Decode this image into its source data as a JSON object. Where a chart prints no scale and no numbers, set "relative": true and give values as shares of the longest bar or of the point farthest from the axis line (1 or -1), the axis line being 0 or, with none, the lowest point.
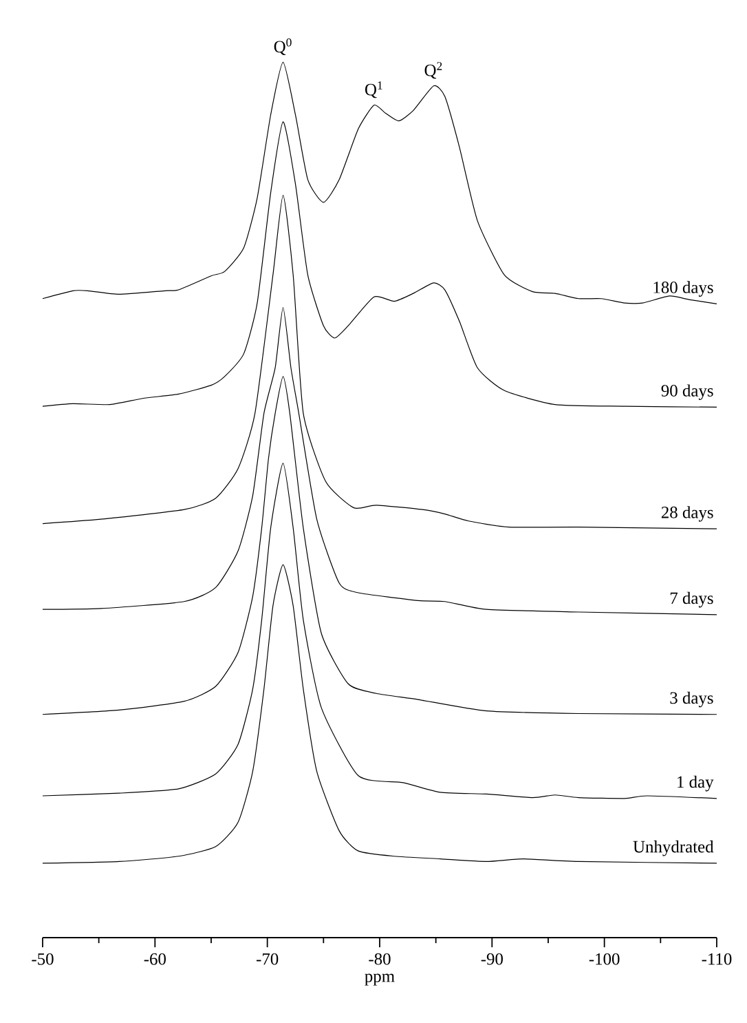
{
  "chart_data": {
    "type": "line",
    "relative": true,
    "xlabel": "ppm",
    "xlim": [
      -50,
      -110
    ],
    "xticks": [
      -50,
      {
        "value": -55,
        "label": null
      },
      -60,
      {
        "value": -65,
        "label": null
      },
      -70,
      {
        "value": -75,
        "label": null
      },
      -80,
      {
        "value": -85,
        "label": null
      },
      -90,
      {
        "value": -95,
        "label": null
      },
      -100,
      {
        "value": -105,
        "label": null
      },
      -110
    ],
    "marker": "none",
    "line_style": "solid",
    "annotations": [
      {
        "text": "Q$^{0}$",
        "x": -71.4,
        "y": 1.0
      },
      {
        "text": "Q$^{1}$",
        "x": -79.5,
        "y": 0.951
      },
      {
        "text": "Q$^{2}$",
        "x": -84.8,
        "y": 0.973
      }
    ],
    "series": [
      {
        "name": "180 days",
        "color": "#000000",
        "x": [
          -50,
          -52.7,
          -54.0,
          -56.8,
          -60.9,
          -62.1,
          -65.0,
          -66.2,
          -67.9,
          -69.1,
          -70.3,
          -71.4,
          -72.5,
          -73.6,
          -75.0,
          -76.4,
          -78.1,
          -79.5,
          -80.5,
          -81.7,
          -83.0,
          -84.8,
          -85.8,
          -87.1,
          -88.7,
          -91.1,
          -93.6,
          -95.6,
          -97.7,
          -99.7,
          -101.8,
          -103.4,
          -105.8,
          -107.5,
          -110
        ],
        "values": [
          0.73,
          0.739,
          0.739,
          0.735,
          0.739,
          0.74,
          0.756,
          0.761,
          0.788,
          0.845,
          0.94,
          1.0,
          0.94,
          0.866,
          0.84,
          0.866,
          0.924,
          0.951,
          0.942,
          0.933,
          0.945,
          0.973,
          0.961,
          0.903,
          0.819,
          0.757,
          0.738,
          0.736,
          0.73,
          0.73,
          0.725,
          0.725,
          0.733,
          0.729,
          0.724
        ]
      },
      {
        "name": "90 days",
        "color": "#000000",
        "x": [
          -50,
          -52.7,
          -56.0,
          -58.9,
          -62.1,
          -65.0,
          -66.2,
          -67.9,
          -69.1,
          -70.3,
          -71.4,
          -72.5,
          -73.6,
          -75.0,
          -76.0,
          -77.2,
          -79.5,
          -81.3,
          -83.0,
          -84.8,
          -85.8,
          -87.1,
          -88.7,
          -91.1,
          -95.6,
          -101.8,
          -110
        ],
        "values": [
          0.607,
          0.61,
          0.609,
          0.616,
          0.621,
          0.631,
          0.641,
          0.667,
          0.725,
          0.851,
          0.932,
          0.861,
          0.757,
          0.699,
          0.685,
          0.699,
          0.732,
          0.727,
          0.736,
          0.748,
          0.74,
          0.704,
          0.651,
          0.625,
          0.609,
          0.607,
          0.606
        ]
      },
      {
        "name": "28 days",
        "color": "#000000",
        "x": [
          -50,
          -55.2,
          -62.6,
          -65.4,
          -67.4,
          -68.9,
          -70.5,
          -71.4,
          -72.3,
          -73.2,
          -75.2,
          -77.7,
          -79.7,
          -83.8,
          -85.8,
          -87.9,
          -91.5,
          -97.7,
          -110
        ],
        "values": [
          0.473,
          0.478,
          0.489,
          0.502,
          0.536,
          0.599,
          0.757,
          0.848,
          0.757,
          0.599,
          0.521,
          0.491,
          0.494,
          0.489,
          0.484,
          0.476,
          0.469,
          0.469,
          0.467
        ]
      },
      {
        "name": "7 days",
        "color": "#000000",
        "x": [
          -50,
          -55.2,
          -62.6,
          -65.4,
          -67.4,
          -68.7,
          -69.7,
          -70.7,
          -71.4,
          -72.1,
          -72.8,
          -74.4,
          -76.4,
          -78.1,
          -83.4,
          -85.8,
          -89.5,
          -97.7,
          -110
        ],
        "values": [
          0.375,
          0.376,
          0.384,
          0.4,
          0.442,
          0.505,
          0.599,
          0.651,
          0.72,
          0.651,
          0.599,
          0.478,
          0.405,
          0.394,
          0.385,
          0.384,
          0.375,
          0.372,
          0.369
        ]
      },
      {
        "name": "3 days",
        "color": "#000000",
        "x": [
          -50,
          -56.8,
          -62.6,
          -65.4,
          -67.4,
          -68.7,
          -69.5,
          -70.1,
          -70.7,
          -71.4,
          -72.0,
          -73.2,
          -74.8,
          -77.2,
          -79.7,
          -83.4,
          -89.5,
          -97.7,
          -110
        ],
        "values": [
          0.255,
          0.26,
          0.27,
          0.287,
          0.326,
          0.39,
          0.468,
          0.547,
          0.599,
          0.641,
          0.599,
          0.468,
          0.348,
          0.29,
          0.279,
          0.272,
          0.259,
          0.256,
          0.255
        ]
      },
      {
        "name": "1 day",
        "color": "#000000",
        "x": [
          -50,
          -56.8,
          -62.1,
          -65.4,
          -67.4,
          -68.7,
          -69.5,
          -70.3,
          -71.4,
          -72.3,
          -73.2,
          -74.8,
          -78.1,
          -82.1,
          -85.4,
          -89.5,
          -93.6,
          -95.6,
          -97.7,
          -101.8,
          -103.8,
          -110
        ],
        "values": [
          0.162,
          0.165,
          0.17,
          0.187,
          0.221,
          0.284,
          0.363,
          0.468,
          0.542,
          0.468,
          0.363,
          0.263,
          0.185,
          0.177,
          0.166,
          0.164,
          0.16,
          0.163,
          0.16,
          0.159,
          0.162,
          0.159
        ]
      },
      {
        "name": "Unhydrated",
        "color": "#000000",
        "x": [
          -50,
          -56.8,
          -62.1,
          -65.4,
          -67.4,
          -68.7,
          -69.7,
          -70.5,
          -71.4,
          -72.3,
          -73.2,
          -74.4,
          -76.4,
          -78.1,
          -81.3,
          -85.4,
          -89.5,
          -92.8,
          -97.7,
          -110
        ],
        "values": [
          0.085,
          0.087,
          0.093,
          0.104,
          0.132,
          0.19,
          0.284,
          0.379,
          0.426,
          0.379,
          0.284,
          0.19,
          0.122,
          0.099,
          0.093,
          0.09,
          0.087,
          0.09,
          0.087,
          0.085
        ]
      }
    ]
  }
}
